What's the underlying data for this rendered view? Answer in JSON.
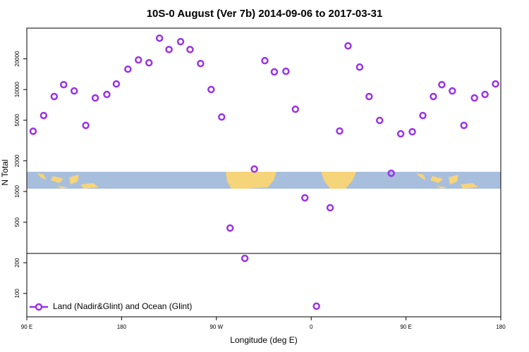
{
  "chart_data": {
    "type": "scatter",
    "title": "10S-0 August (Ver 7b)   2014-09-06 to 2017-03-31",
    "x_label": "Longitude (deg E)",
    "y_label": "N Total",
    "log_y": true,
    "legend_position": "bottom-left",
    "xlim": [
      90,
      540
    ],
    "ylim": [
      59,
      40000
    ],
    "xticks": [
      {
        "value": 90,
        "label": "90 E"
      },
      {
        "value": 180,
        "label": "180"
      },
      {
        "value": 270,
        "label": "90 W"
      },
      {
        "value": 360,
        "label": "0"
      },
      {
        "value": 450,
        "label": "90 E"
      },
      {
        "value": 540,
        "label": "180"
      }
    ],
    "yticks": [
      100,
      200,
      500,
      1000,
      2000,
      5000,
      10000,
      20000
    ],
    "series": [
      {
        "name": "Land (Nadir&Glint) and Ocean (Glint)",
        "color": "#9a32e6",
        "x": [
          96,
          106,
          116,
          125,
          135,
          146,
          155,
          166,
          175,
          186,
          196,
          206,
          216,
          225,
          236,
          245,
          255,
          265,
          275,
          283,
          297,
          306,
          316,
          325,
          336,
          345,
          354,
          365,
          378,
          387,
          395,
          406,
          415,
          425,
          436,
          445,
          456,
          466,
          476,
          484,
          494,
          505,
          515,
          525,
          535
        ],
        "values": [
          3900,
          5560,
          8540,
          11170,
          9690,
          4450,
          8270,
          8950,
          11350,
          15850,
          19500,
          18300,
          31900,
          24700,
          29500,
          24700,
          18000,
          10000,
          5380,
          438,
          221,
          1660,
          19200,
          14900,
          15100,
          6410,
          867,
          75,
          693,
          3920,
          26800,
          16600,
          8540,
          4980,
          1510,
          3680,
          3855,
          5560,
          8540,
          11170,
          9690,
          4450,
          8270,
          8950,
          11350
        ]
      }
    ]
  }
}
